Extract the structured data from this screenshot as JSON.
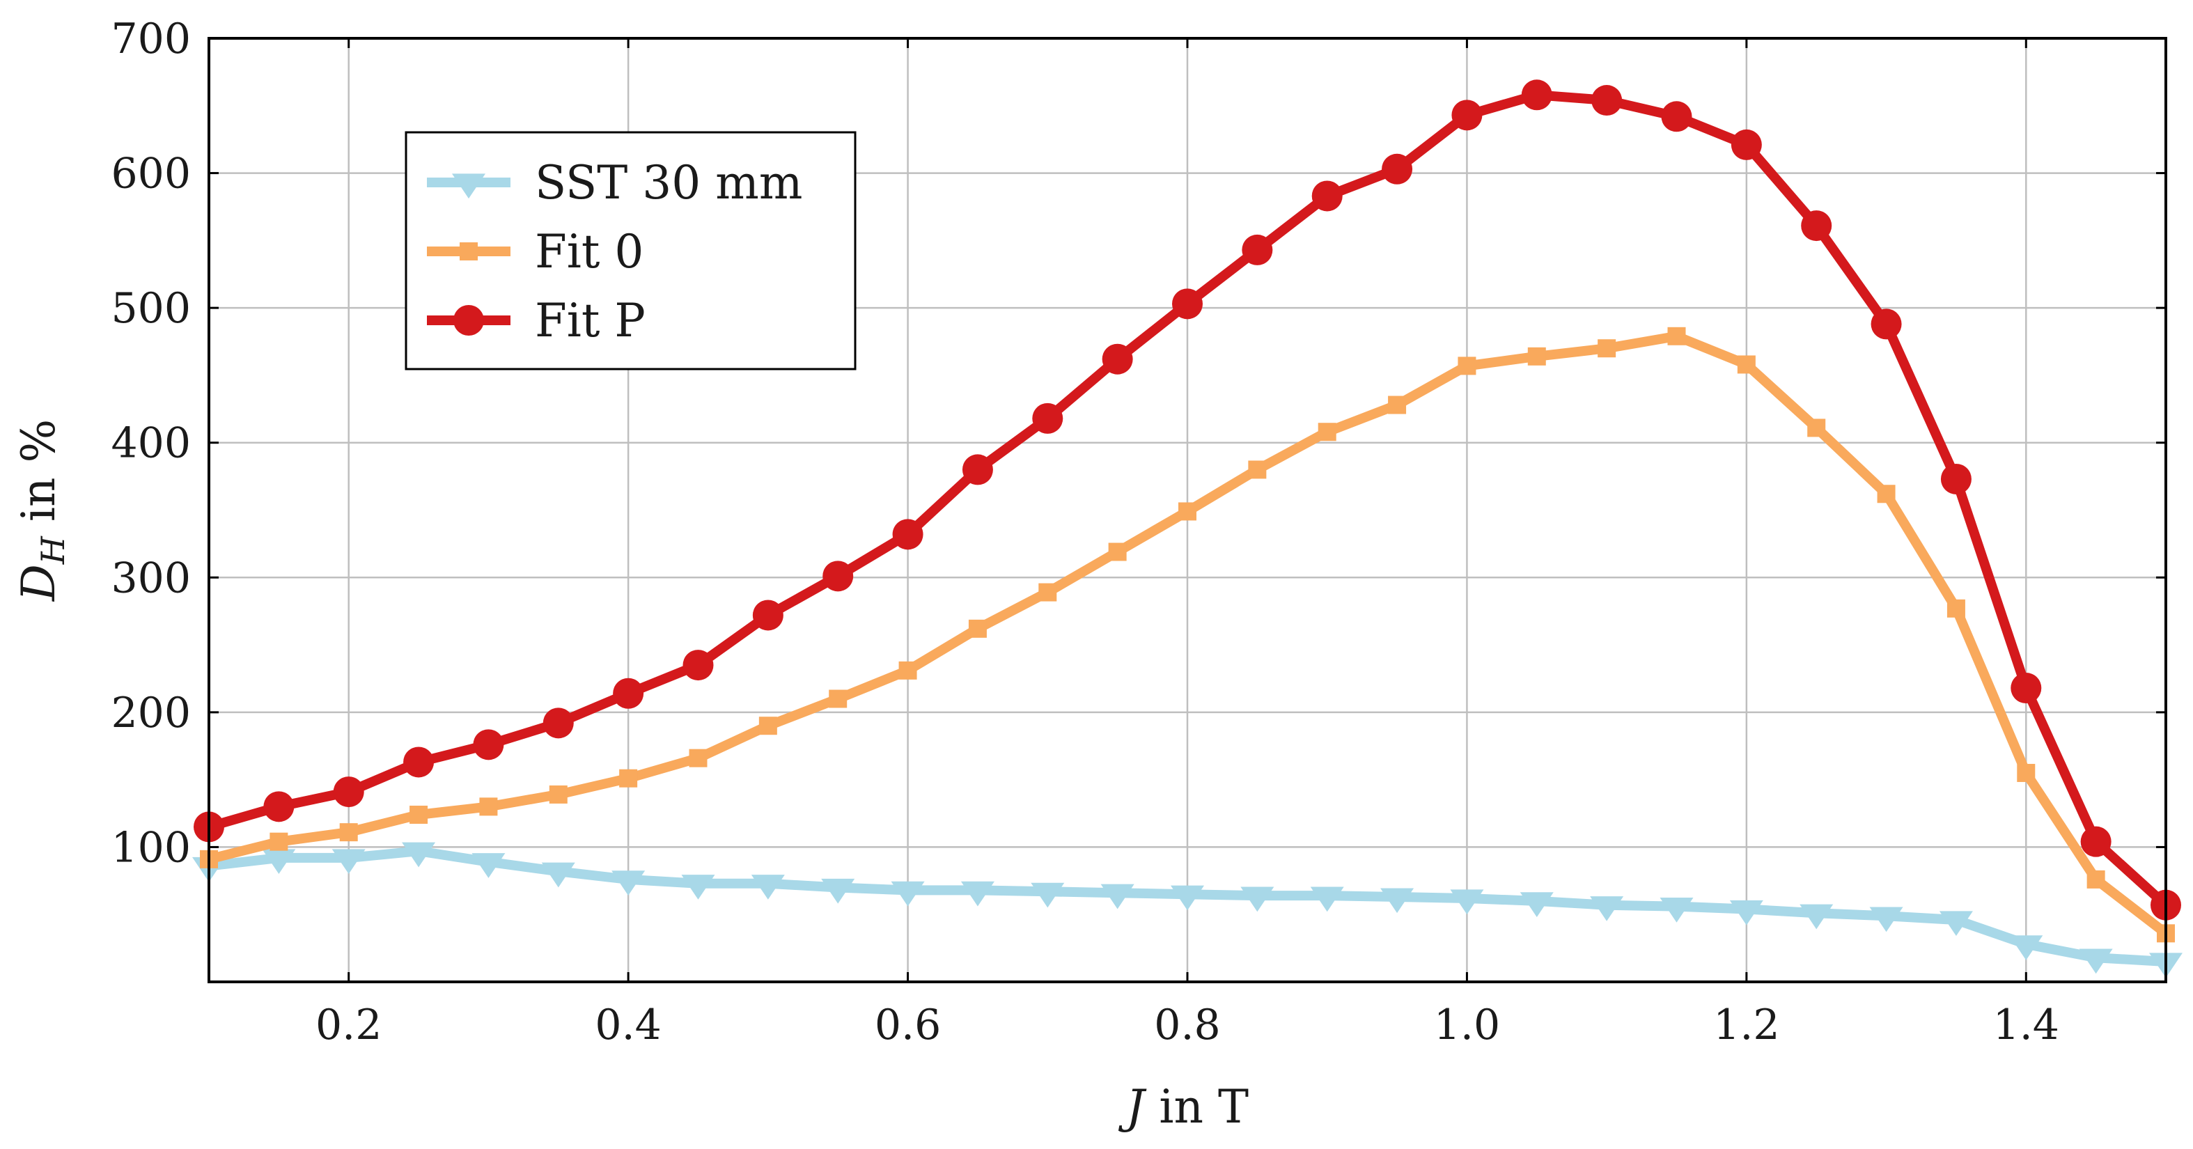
{
  "chart_data": {
    "type": "line",
    "title": "",
    "xlabel": {
      "var": "J",
      "rest": " in T"
    },
    "ylabel": {
      "var": "D",
      "sub": "H",
      "rest": " in %"
    },
    "xlim": [
      0.1,
      1.5
    ],
    "ylim": [
      0,
      700
    ],
    "xticks": [
      0.2,
      0.4,
      0.6,
      0.8,
      1.0,
      1.2,
      1.4
    ],
    "xtick_labels": [
      "0.2",
      "0.4",
      "0.6",
      "0.8",
      "1.0",
      "1.2",
      "1.4"
    ],
    "yticks": [
      100,
      200,
      300,
      400,
      500,
      600,
      700
    ],
    "ytick_labels": [
      "100",
      "200",
      "300",
      "400",
      "500",
      "600",
      "700"
    ],
    "grid": true,
    "legend_position": "top-left",
    "x": [
      0.1,
      0.15,
      0.2,
      0.25,
      0.3,
      0.35,
      0.4,
      0.45,
      0.5,
      0.55,
      0.6,
      0.65,
      0.7,
      0.75,
      0.8,
      0.85,
      0.9,
      0.95,
      1.0,
      1.05,
      1.1,
      1.15,
      1.2,
      1.25,
      1.3,
      1.35,
      1.4,
      1.45,
      1.5
    ],
    "series": [
      {
        "name": "SST 30 mm",
        "color": "#a8d8e8",
        "marker": "triangle-down",
        "values": [
          86,
          92,
          92,
          97,
          89,
          82,
          76,
          73,
          73,
          70,
          68,
          68,
          67,
          66,
          65,
          64,
          64,
          63,
          62,
          60,
          57,
          56,
          54,
          51,
          49,
          46,
          28,
          18,
          15
        ]
      },
      {
        "name": "Fit 0",
        "color": "#f9a95c",
        "marker": "square",
        "values": [
          91,
          104,
          111,
          124,
          130,
          139,
          151,
          166,
          190,
          210,
          231,
          262,
          289,
          319,
          349,
          380,
          408,
          428,
          457,
          464,
          470,
          479,
          458,
          411,
          362,
          277,
          155,
          76,
          36
        ]
      },
      {
        "name": "Fit P",
        "color": "#d4191c",
        "marker": "circle",
        "values": [
          115,
          130,
          141,
          163,
          176,
          192,
          214,
          235,
          272,
          301,
          332,
          380,
          418,
          462,
          503,
          543,
          583,
          603,
          643,
          658,
          654,
          642,
          621,
          561,
          488,
          373,
          218,
          104,
          57
        ]
      }
    ]
  }
}
